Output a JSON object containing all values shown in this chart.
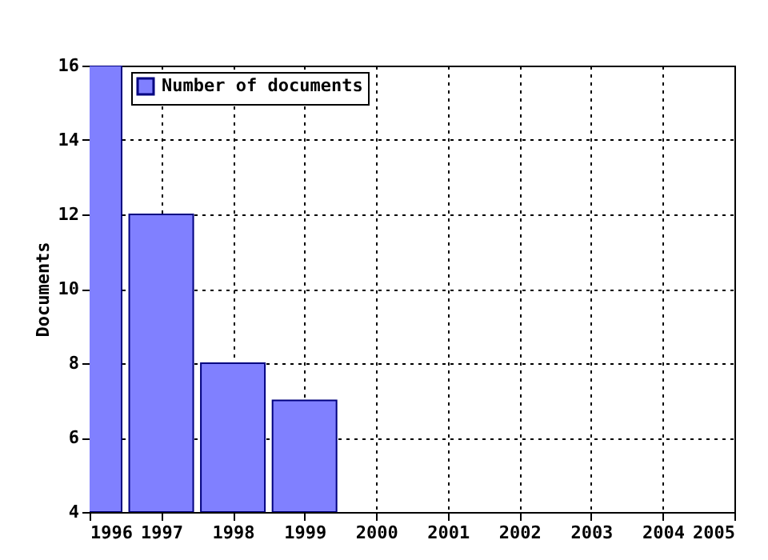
{
  "chart_data": {
    "type": "bar",
    "ylabel": "Documents",
    "x": [
      1996,
      1997,
      1998,
      1999
    ],
    "series": [
      {
        "name": "Number of documents",
        "color": "#8080ff",
        "values": [
          16,
          12,
          8,
          7
        ]
      }
    ],
    "xlim": [
      1996,
      2005
    ],
    "xticks": [
      1996,
      1997,
      1998,
      1999,
      2000,
      2001,
      2002,
      2003,
      2004,
      2005
    ],
    "ylim": [
      4,
      16
    ],
    "yticks": [
      4,
      6,
      8,
      10,
      12,
      14,
      16
    ],
    "grid": true,
    "legend": "top left"
  }
}
